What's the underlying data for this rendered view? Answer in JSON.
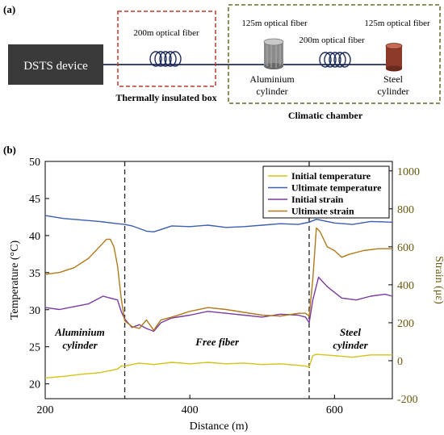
{
  "panel_a": {
    "label": "(a)",
    "device": "DSTS device",
    "fiber_200_box": "200m optical fiber",
    "box_label": "Thermally insulated box",
    "fiber_125_left": "125m optical fiber",
    "fiber_200_chamber": "200m optical fiber",
    "fiber_125_right": "125m optical fiber",
    "aluminium_line1": "Aluminium",
    "aluminium_line2": "cylinder",
    "steel_line1": "Steel",
    "steel_line2": "cylinder",
    "chamber_label": "Climatic chamber",
    "colors": {
      "device_bg": "#3a3a3a",
      "box_border": "#c0392b",
      "chamber_border": "#6b6b2a",
      "fiber": "#1f2d5a",
      "steel": "#8b3a2a"
    }
  },
  "panel_b": {
    "label": "(b)",
    "region_labels": [
      {
        "line1": "Aluminium",
        "line2": "cylinder"
      },
      {
        "line1": "Free fiber",
        "line2": ""
      },
      {
        "line1": "Steel",
        "line2": "cylinder"
      }
    ]
  },
  "chart_data": {
    "type": "line",
    "xlabel": "Distance (m)",
    "ylabel_left": "Temperature (°C)",
    "ylabel_right": "Strain (με)",
    "xlim": [
      200,
      680
    ],
    "ylim_left": [
      18,
      50
    ],
    "ylim_right": [
      -200,
      1050
    ],
    "xticks": [
      200,
      400,
      600
    ],
    "yticks_left": [
      20,
      25,
      30,
      35,
      40,
      45,
      50
    ],
    "yticks_right": [
      -200,
      0,
      200,
      400,
      600,
      800,
      1000
    ],
    "vlines": [
      310,
      565
    ],
    "legend_position": "top-right",
    "series": [
      {
        "name": "Initial temperature",
        "axis": "left",
        "color": "#d4c317",
        "x": [
          200,
          225,
          250,
          275,
          300,
          305,
          310,
          330,
          350,
          375,
          400,
          425,
          450,
          475,
          500,
          525,
          550,
          560,
          565,
          570,
          575,
          600,
          625,
          650,
          680
        ],
        "y": [
          20.8,
          21.0,
          21.3,
          21.5,
          22.0,
          22.4,
          22.4,
          22.8,
          22.6,
          22.9,
          22.7,
          22.9,
          22.7,
          22.8,
          22.6,
          22.7,
          22.5,
          22.4,
          22.3,
          23.8,
          24.0,
          23.8,
          23.6,
          23.9,
          23.9
        ]
      },
      {
        "name": "Ultimate temperature",
        "axis": "left",
        "color": "#3a5fb0",
        "x": [
          200,
          225,
          250,
          275,
          300,
          310,
          320,
          340,
          350,
          375,
          400,
          425,
          450,
          475,
          500,
          525,
          550,
          565,
          575,
          600,
          625,
          650,
          680
        ],
        "y": [
          42.7,
          42.3,
          42.1,
          41.9,
          41.6,
          41.5,
          41.3,
          40.6,
          40.5,
          41.3,
          41.2,
          41.4,
          41.1,
          41.2,
          41.4,
          41.6,
          41.5,
          41.8,
          42.2,
          41.7,
          41.5,
          41.9,
          41.8
        ]
      },
      {
        "name": "Initial strain",
        "axis": "right",
        "color": "#7a3aa0",
        "x": [
          200,
          220,
          240,
          260,
          280,
          290,
          300,
          305,
          310,
          320,
          330,
          340,
          350,
          360,
          375,
          400,
          425,
          450,
          475,
          500,
          525,
          550,
          560,
          565,
          570,
          578,
          590,
          610,
          630,
          650,
          670,
          680
        ],
        "y": [
          280,
          270,
          285,
          300,
          340,
          330,
          320,
          260,
          220,
          175,
          190,
          170,
          155,
          200,
          225,
          240,
          260,
          250,
          240,
          230,
          245,
          240,
          230,
          200,
          320,
          440,
          390,
          330,
          320,
          340,
          350,
          340
        ]
      },
      {
        "name": "Ultimate strain",
        "axis": "right",
        "color": "#b07a1a",
        "x": [
          200,
          220,
          240,
          260,
          275,
          285,
          290,
          295,
          300,
          305,
          310,
          320,
          330,
          340,
          350,
          360,
          375,
          400,
          425,
          450,
          475,
          500,
          525,
          550,
          560,
          565,
          570,
          575,
          580,
          590,
          600,
          610,
          620,
          640,
          660,
          680
        ],
        "y": [
          455,
          465,
          490,
          540,
          600,
          640,
          640,
          600,
          500,
          330,
          210,
          180,
          170,
          215,
          160,
          215,
          230,
          260,
          280,
          270,
          255,
          240,
          235,
          250,
          250,
          235,
          430,
          700,
          680,
          600,
          580,
          545,
          560,
          580,
          590,
          590
        ]
      }
    ]
  }
}
